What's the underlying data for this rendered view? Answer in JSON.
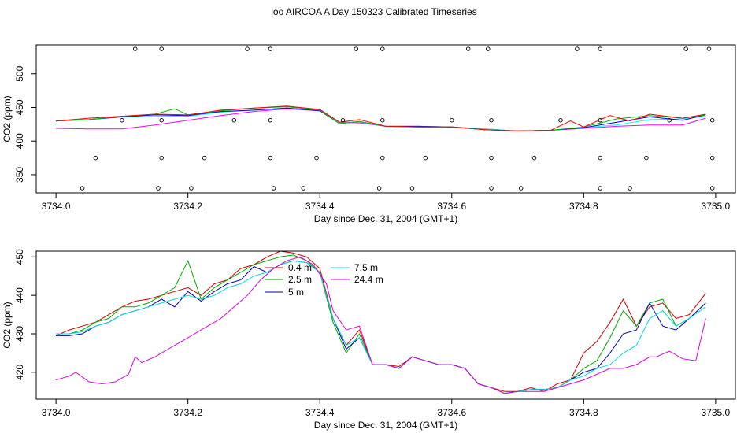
{
  "title": "loo AIRCOA A  Day 150323  Calibrated Timeseries",
  "chart_data": [
    {
      "type": "line",
      "xlabel": "Day since Dec. 31, 2004 (GMT+1)",
      "ylabel": "CO2 (ppm)",
      "xlim": [
        3733.97,
        3735.03
      ],
      "ylim": [
        323,
        543
      ],
      "x_ticks": [
        3734.0,
        3734.2,
        3734.4,
        3734.6,
        3734.8,
        3735.0
      ],
      "x_tick_labels": [
        "3734.0",
        "3734.2",
        "3734.4",
        "3734.6",
        "3734.8",
        "3735.0"
      ],
      "y_ticks": [
        350,
        400,
        450,
        500
      ],
      "y_tick_labels": [
        "350",
        "400",
        "450",
        "500"
      ],
      "legend": false,
      "series": [
        {
          "color": "#ff00ff",
          "x": [
            3734.0,
            3734.05,
            3734.1,
            3734.15,
            3734.2,
            3734.25,
            3734.3,
            3734.35,
            3734.4,
            3734.43,
            3734.46,
            3734.5,
            3734.55,
            3734.6,
            3734.65,
            3734.7,
            3734.75,
            3734.8,
            3734.85,
            3734.9,
            3734.95,
            3734.985
          ],
          "y": [
            419,
            418,
            418,
            424,
            431,
            438,
            444,
            448,
            445,
            428,
            427,
            422,
            422,
            421,
            418,
            415,
            416,
            419,
            422,
            424,
            424,
            434
          ]
        },
        {
          "color": "#00ffff",
          "x": [
            3734.0,
            3734.05,
            3734.1,
            3734.15,
            3734.2,
            3734.25,
            3734.3,
            3734.35,
            3734.4,
            3734.43,
            3734.46,
            3734.5,
            3734.55,
            3734.6,
            3734.65,
            3734.7,
            3734.75,
            3734.8,
            3734.85,
            3734.9,
            3734.95,
            3734.985
          ],
          "y": [
            430,
            432,
            436,
            437,
            437,
            443,
            446,
            449,
            445,
            428,
            428,
            422,
            422,
            421,
            418,
            415,
            416,
            420,
            424,
            432,
            433,
            437
          ]
        },
        {
          "color": "#0000ff",
          "x": [
            3734.0,
            3734.05,
            3734.1,
            3734.15,
            3734.2,
            3734.25,
            3734.3,
            3734.35,
            3734.4,
            3734.43,
            3734.46,
            3734.5,
            3734.55,
            3734.6,
            3734.65,
            3734.7,
            3734.75,
            3734.8,
            3734.85,
            3734.9,
            3734.95,
            3734.985
          ],
          "y": [
            430,
            432,
            436,
            439,
            438,
            444,
            446,
            449,
            445,
            426,
            429,
            422,
            422,
            421,
            417,
            415,
            416,
            420,
            428,
            436,
            431,
            439
          ]
        },
        {
          "color": "#00bb00",
          "x": [
            3734.0,
            3734.05,
            3734.1,
            3734.15,
            3734.18,
            3734.2,
            3734.25,
            3734.3,
            3734.35,
            3734.4,
            3734.43,
            3734.46,
            3734.5,
            3734.55,
            3734.6,
            3734.65,
            3734.7,
            3734.75,
            3734.8,
            3734.85,
            3734.9,
            3734.95,
            3734.985
          ],
          "y": [
            430,
            432,
            437,
            440,
            448,
            439,
            445,
            449,
            451,
            446,
            426,
            429,
            422,
            421,
            421,
            417,
            415,
            416,
            421,
            433,
            438,
            434,
            439
          ]
        },
        {
          "color": "#ff0000",
          "x": [
            3734.0,
            3734.05,
            3734.1,
            3734.15,
            3734.2,
            3734.25,
            3734.3,
            3734.35,
            3734.4,
            3734.43,
            3734.46,
            3734.5,
            3734.55,
            3734.6,
            3734.65,
            3734.7,
            3734.75,
            3734.78,
            3734.8,
            3734.84,
            3734.87,
            3734.9,
            3734.95,
            3734.985
          ],
          "y": [
            430,
            434,
            437,
            440,
            439,
            446,
            449,
            452,
            447,
            428,
            432,
            422,
            421,
            421,
            417,
            415,
            416,
            430,
            421,
            438,
            430,
            440,
            434,
            440
          ]
        }
      ],
      "circle_markers": {
        "rows_y": [
          537,
          431,
          375,
          330
        ],
        "row1_x": [
          3734.12,
          3734.16,
          3734.29,
          3734.325,
          3734.455,
          3734.495,
          3734.625,
          3734.655,
          3734.79,
          3734.825,
          3734.955,
          3734.99
        ],
        "row2_x": [
          3734.1,
          3734.16,
          3734.27,
          3734.325,
          3734.435,
          3734.495,
          3734.6,
          3734.66,
          3734.765,
          3734.825,
          3734.93,
          3734.995
        ],
        "row3_x": [
          3734.06,
          3734.16,
          3734.225,
          3734.325,
          3734.395,
          3734.495,
          3734.56,
          3734.66,
          3734.725,
          3734.825,
          3734.895,
          3734.995
        ],
        "row4_x": [
          3734.04,
          3734.155,
          3734.205,
          3734.33,
          3734.375,
          3734.49,
          3734.54,
          3734.66,
          3734.705,
          3734.825,
          3734.87,
          3734.995
        ]
      }
    },
    {
      "type": "line",
      "xlabel": "Day since Dec. 31, 2004 (GMT+1)",
      "ylabel": "CO2 (ppm)",
      "xlim": [
        3733.97,
        3735.03
      ],
      "ylim": [
        413,
        451.5
      ],
      "x_ticks": [
        3734.0,
        3734.2,
        3734.4,
        3734.6,
        3734.8,
        3735.0
      ],
      "x_tick_labels": [
        "3734.0",
        "3734.2",
        "3734.4",
        "3734.6",
        "3734.8",
        "3735.0"
      ],
      "y_ticks": [
        420,
        430,
        440,
        450
      ],
      "y_tick_labels": [
        "420",
        "430",
        "440",
        "450"
      ],
      "legend": true,
      "legend_position": "top-center",
      "series": [
        {
          "name": "0.4 m",
          "color": "#cc0000",
          "x": [
            3734.0,
            3734.02,
            3734.04,
            3734.06,
            3734.08,
            3734.1,
            3734.12,
            3734.14,
            3734.16,
            3734.18,
            3734.2,
            3734.22,
            3734.24,
            3734.26,
            3734.28,
            3734.3,
            3734.32,
            3734.34,
            3734.36,
            3734.38,
            3734.4,
            3734.42,
            3734.44,
            3734.46,
            3734.48,
            3734.5,
            3734.52,
            3734.54,
            3734.56,
            3734.58,
            3734.6,
            3734.62,
            3734.64,
            3734.66,
            3734.68,
            3734.7,
            3734.72,
            3734.74,
            3734.76,
            3734.78,
            3734.8,
            3734.82,
            3734.84,
            3734.86,
            3734.88,
            3734.9,
            3734.92,
            3734.94,
            3734.96,
            3734.985
          ],
          "y": [
            429.5,
            431,
            432,
            433,
            435,
            437,
            438.5,
            439,
            440,
            441,
            442,
            440,
            443,
            444,
            447,
            448,
            450,
            451.5,
            451,
            450,
            447,
            434,
            427,
            431,
            422,
            422,
            421.5,
            424,
            423,
            422,
            422,
            421,
            417,
            416,
            415,
            415,
            416,
            415,
            417,
            418,
            425,
            428,
            433,
            439,
            432,
            437,
            438,
            434,
            435,
            440.5
          ]
        },
        {
          "name": "2.5 m",
          "color": "#00aa00",
          "x": [
            3734.0,
            3734.02,
            3734.04,
            3734.06,
            3734.08,
            3734.1,
            3734.12,
            3734.14,
            3734.16,
            3734.18,
            3734.2,
            3734.22,
            3734.24,
            3734.26,
            3734.28,
            3734.3,
            3734.32,
            3734.34,
            3734.36,
            3734.38,
            3734.4,
            3734.42,
            3734.44,
            3734.46,
            3734.48,
            3734.5,
            3734.52,
            3734.54,
            3734.56,
            3734.58,
            3734.6,
            3734.62,
            3734.64,
            3734.66,
            3734.68,
            3734.7,
            3734.72,
            3734.74,
            3734.76,
            3734.78,
            3734.8,
            3734.82,
            3734.84,
            3734.86,
            3734.88,
            3734.9,
            3734.92,
            3734.94,
            3734.96,
            3734.985
          ],
          "y": [
            430,
            430,
            431,
            433,
            434,
            437,
            437,
            438,
            440,
            442,
            449,
            439,
            442,
            444,
            446,
            448,
            449,
            450,
            450.5,
            449,
            446,
            433,
            425,
            430,
            422,
            422,
            421,
            424,
            423,
            422,
            422,
            421,
            417,
            416,
            414.5,
            415,
            415.5,
            415.5,
            416,
            418,
            421,
            423,
            429,
            436,
            432,
            438,
            439,
            432,
            434,
            438
          ]
        },
        {
          "name": "5 m",
          "color": "#0000aa",
          "x": [
            3734.0,
            3734.02,
            3734.04,
            3734.06,
            3734.08,
            3734.1,
            3734.12,
            3734.14,
            3734.16,
            3734.18,
            3734.2,
            3734.22,
            3734.24,
            3734.26,
            3734.28,
            3734.3,
            3734.32,
            3734.34,
            3734.36,
            3734.38,
            3734.4,
            3734.42,
            3734.44,
            3734.46,
            3734.48,
            3734.5,
            3734.52,
            3734.54,
            3734.56,
            3734.58,
            3734.6,
            3734.62,
            3734.64,
            3734.66,
            3734.68,
            3734.7,
            3734.72,
            3734.74,
            3734.76,
            3734.78,
            3734.8,
            3734.82,
            3734.84,
            3734.86,
            3734.88,
            3734.9,
            3734.92,
            3734.94,
            3734.96,
            3734.985
          ],
          "y": [
            429.5,
            429.5,
            430,
            432,
            433,
            435,
            436,
            437,
            439,
            437,
            441,
            438.5,
            441,
            443,
            444,
            447.5,
            446,
            448,
            449,
            448.5,
            446,
            434,
            426,
            429,
            422,
            422,
            421,
            424,
            423,
            422,
            422,
            421,
            417,
            416,
            414.5,
            415,
            415.5,
            415.5,
            416,
            418,
            420,
            421,
            425,
            430,
            431,
            438,
            432,
            431,
            434,
            438
          ]
        },
        {
          "name": "7.5 m",
          "color": "#00dddd",
          "x": [
            3734.0,
            3734.02,
            3734.04,
            3734.06,
            3734.08,
            3734.1,
            3734.12,
            3734.14,
            3734.16,
            3734.18,
            3734.2,
            3734.22,
            3734.24,
            3734.26,
            3734.28,
            3734.3,
            3734.32,
            3734.34,
            3734.36,
            3734.38,
            3734.4,
            3734.42,
            3734.44,
            3734.46,
            3734.48,
            3734.5,
            3734.52,
            3734.54,
            3734.56,
            3734.58,
            3734.6,
            3734.62,
            3734.64,
            3734.66,
            3734.68,
            3734.7,
            3734.72,
            3734.74,
            3734.76,
            3734.78,
            3734.8,
            3734.82,
            3734.84,
            3734.86,
            3734.88,
            3734.9,
            3734.92,
            3734.94,
            3734.96,
            3734.985
          ],
          "y": [
            430,
            430,
            430.5,
            432,
            433,
            435,
            436,
            437,
            438,
            439,
            440,
            439,
            440,
            442,
            443,
            445,
            446,
            448,
            449,
            448.5,
            446,
            434,
            427,
            429,
            422,
            422,
            421,
            424,
            423,
            422,
            422,
            421,
            417,
            416,
            414.5,
            415,
            415.5,
            415.5,
            416,
            418,
            419,
            421,
            422,
            425,
            427,
            434,
            436,
            432,
            434,
            437
          ]
        },
        {
          "name": "24.4 m",
          "color": "#dd00dd",
          "x": [
            3734.0,
            3734.02,
            3734.03,
            3734.05,
            3734.07,
            3734.09,
            3734.11,
            3734.12,
            3734.13,
            3734.15,
            3734.17,
            3734.19,
            3734.21,
            3734.23,
            3734.25,
            3734.27,
            3734.29,
            3734.31,
            3734.33,
            3734.35,
            3734.37,
            3734.39,
            3734.41,
            3734.42,
            3734.44,
            3734.46,
            3734.48,
            3734.5,
            3734.52,
            3734.54,
            3734.56,
            3734.58,
            3734.6,
            3734.62,
            3734.64,
            3734.66,
            3734.68,
            3734.7,
            3734.72,
            3734.74,
            3734.76,
            3734.78,
            3734.8,
            3734.82,
            3734.84,
            3734.86,
            3734.88,
            3734.9,
            3734.91,
            3734.93,
            3734.95,
            3734.97,
            3734.985
          ],
          "y": [
            418,
            419,
            420,
            417.5,
            417,
            417.5,
            419.5,
            424,
            422.5,
            424,
            426,
            428,
            430,
            432,
            434,
            437,
            440,
            444,
            447,
            449,
            450,
            448,
            443,
            436,
            431,
            432,
            422,
            422,
            421,
            424,
            423,
            422,
            422,
            421,
            417,
            416,
            414.5,
            415,
            415,
            415,
            416,
            417,
            418,
            419.5,
            421,
            421,
            422,
            424,
            424,
            425.5,
            423.5,
            423,
            434
          ]
        }
      ]
    }
  ]
}
